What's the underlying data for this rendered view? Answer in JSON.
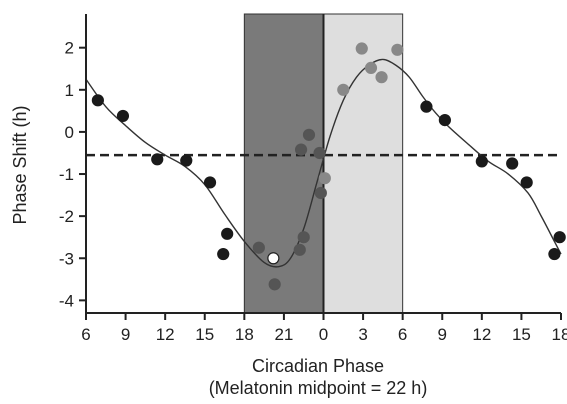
{
  "chart_data": {
    "type": "scatter",
    "title": "",
    "xlabel": "Circadian Phase",
    "xlabel_note": "(Melatonin midpoint = 22 h)",
    "ylabel": "Phase Shift (h)",
    "x_tick_labels": [
      "6",
      "9",
      "12",
      "15",
      "18",
      "21",
      "0",
      "3",
      "6",
      "9",
      "12",
      "15",
      "18"
    ],
    "x_tick_hours": [
      6,
      9,
      12,
      15,
      18,
      21,
      24,
      27,
      30,
      33,
      36,
      39,
      42
    ],
    "xlim_hours": [
      6,
      42
    ],
    "y_ticks": [
      2,
      1,
      0,
      -1,
      -2,
      -3,
      -4
    ],
    "ylim": [
      -4.3,
      2.8
    ],
    "grid": false,
    "reference_line": {
      "y": -0.55,
      "style": "dashed"
    },
    "shaded_regions": [
      {
        "x_start_hours": 18,
        "x_end_hours": 24,
        "color": "#7a7a7a"
      },
      {
        "x_start_hours": 24,
        "x_end_hours": 30,
        "color": "#dedede"
      }
    ],
    "vertical_line_hours": 24,
    "points": [
      {
        "x": 6.9,
        "y": 0.75,
        "fill": "#1a1a1a"
      },
      {
        "x": 8.8,
        "y": 0.38,
        "fill": "#1a1a1a"
      },
      {
        "x": 11.4,
        "y": -0.65,
        "fill": "#1a1a1a"
      },
      {
        "x": 13.6,
        "y": -0.68,
        "fill": "#1a1a1a"
      },
      {
        "x": 15.4,
        "y": -1.2,
        "fill": "#1a1a1a"
      },
      {
        "x": 16.7,
        "y": -2.42,
        "fill": "#1a1a1a"
      },
      {
        "x": 16.4,
        "y": -2.9,
        "fill": "#1a1a1a"
      },
      {
        "x": 19.1,
        "y": -2.75,
        "fill": "#555555"
      },
      {
        "x": 20.2,
        "y": -3.0,
        "fill": "#ffffff",
        "stroke": "#222222"
      },
      {
        "x": 20.3,
        "y": -3.62,
        "fill": "#555555"
      },
      {
        "x": 22.2,
        "y": -2.8,
        "fill": "#555555"
      },
      {
        "x": 22.5,
        "y": -2.5,
        "fill": "#555555"
      },
      {
        "x": 22.3,
        "y": -0.42,
        "fill": "#555555"
      },
      {
        "x": 22.9,
        "y": -0.07,
        "fill": "#555555"
      },
      {
        "x": 23.7,
        "y": -0.5,
        "fill": "#555555"
      },
      {
        "x": 23.8,
        "y": -1.45,
        "fill": "#555555"
      },
      {
        "x": 24.1,
        "y": -1.1,
        "fill": "#888888"
      },
      {
        "x": 25.5,
        "y": 1.0,
        "fill": "#888888"
      },
      {
        "x": 26.9,
        "y": 1.98,
        "fill": "#888888"
      },
      {
        "x": 27.6,
        "y": 1.52,
        "fill": "#888888"
      },
      {
        "x": 28.4,
        "y": 1.3,
        "fill": "#888888"
      },
      {
        "x": 29.6,
        "y": 1.95,
        "fill": "#888888"
      },
      {
        "x": 31.8,
        "y": 0.6,
        "fill": "#1a1a1a"
      },
      {
        "x": 33.2,
        "y": 0.28,
        "fill": "#1a1a1a"
      },
      {
        "x": 36.0,
        "y": -0.7,
        "fill": "#1a1a1a"
      },
      {
        "x": 38.3,
        "y": -0.75,
        "fill": "#1a1a1a"
      },
      {
        "x": 39.4,
        "y": -1.2,
        "fill": "#1a1a1a"
      },
      {
        "x": 41.5,
        "y": -2.9,
        "fill": "#1a1a1a"
      },
      {
        "x": 41.9,
        "y": -2.5,
        "fill": "#1a1a1a"
      }
    ],
    "fit_curve": [
      [
        6,
        1.25
      ],
      [
        7.5,
        0.6
      ],
      [
        9,
        0.15
      ],
      [
        10.5,
        -0.25
      ],
      [
        12,
        -0.55
      ],
      [
        13.5,
        -0.82
      ],
      [
        15,
        -1.25
      ],
      [
        16.5,
        -1.95
      ],
      [
        18,
        -2.6
      ],
      [
        19.5,
        -3.1
      ],
      [
        20.6,
        -3.2
      ],
      [
        21.5,
        -3.0
      ],
      [
        22.5,
        -2.3
      ],
      [
        23.5,
        -1.2
      ],
      [
        24.5,
        -0.1
      ],
      [
        25.5,
        0.75
      ],
      [
        26.5,
        1.3
      ],
      [
        27.5,
        1.6
      ],
      [
        28.5,
        1.72
      ],
      [
        29.5,
        1.58
      ],
      [
        30.5,
        1.3
      ],
      [
        31.5,
        0.85
      ],
      [
        32.5,
        0.45
      ],
      [
        33.5,
        0.12
      ],
      [
        35,
        -0.3
      ],
      [
        36.5,
        -0.7
      ],
      [
        38,
        -1.0
      ],
      [
        39.5,
        -1.45
      ],
      [
        40.5,
        -2.0
      ],
      [
        41.5,
        -2.6
      ],
      [
        42,
        -2.9
      ]
    ],
    "colors": {
      "axis": "#222222",
      "curve": "#333333",
      "dark_band": "#7a7a7a",
      "light_band": "#dedede"
    }
  }
}
